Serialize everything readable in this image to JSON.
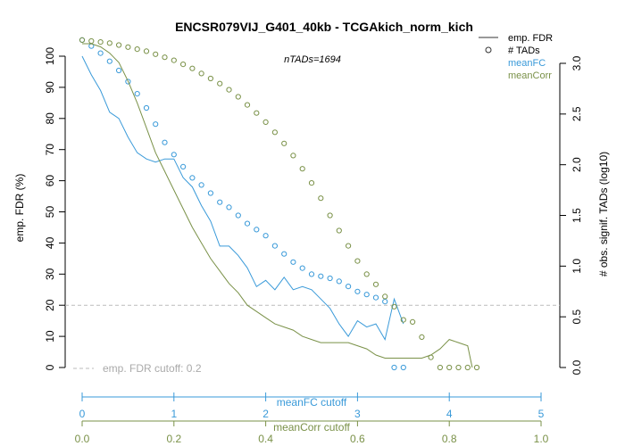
{
  "chart_data": {
    "type": "line",
    "title": "ENCSR079VIJ_G401_40kb - TCGAkich_norm_kich",
    "subtitle": "nTADs=1694",
    "ylabel_left": "emp. FDR (%)",
    "ylabel_right": "# obs. signif. TADs (log10)",
    "xlabel_fc": "meanFC cutoff",
    "xlabel_corr": "meanCorr cutoff",
    "left_ticks": [
      "0",
      "10",
      "20",
      "30",
      "40",
      "50",
      "60",
      "70",
      "80",
      "90",
      "100"
    ],
    "right_ticks": [
      "0.0",
      "0.5",
      "1.0",
      "1.5",
      "2.0",
      "2.5",
      "3.0"
    ],
    "fc_ticks": [
      "0",
      "1",
      "2",
      "3",
      "4",
      "5"
    ],
    "corr_ticks": [
      "0.0",
      "0.2",
      "0.4",
      "0.6",
      "0.8",
      "1.0"
    ],
    "ylim_fdr": [
      0,
      100
    ],
    "ylim_log10": [
      0,
      3
    ],
    "xlim_fc": [
      0,
      5
    ],
    "xlim_corr": [
      0,
      1
    ],
    "fdr_cutoff": 20,
    "cutoff_label": "emp. FDR cutoff: 0.2",
    "colors": {
      "fc": "#3a9ad9",
      "corr": "#7a9148",
      "cutoff": "#bbbbbb",
      "axis": "#000000"
    },
    "legend": [
      {
        "label": "emp. FDR",
        "kind": "line",
        "color": "#333333"
      },
      {
        "label": "# TADs",
        "kind": "circle",
        "color": "#333333"
      },
      {
        "label": "meanFC",
        "kind": "text",
        "color": "#3a9ad9"
      },
      {
        "label": "meanCorr",
        "kind": "text",
        "color": "#7a9148"
      }
    ],
    "series": [
      {
        "name": "meanFC",
        "fdr_x": [
          0,
          0.1,
          0.2,
          0.3,
          0.4,
          0.5,
          0.6,
          0.7,
          0.8,
          0.9,
          1.0,
          1.1,
          1.2,
          1.3,
          1.4,
          1.5,
          1.6,
          1.7,
          1.8,
          1.9,
          2.0,
          2.1,
          2.2,
          2.3,
          2.4,
          2.5,
          2.6,
          2.7,
          2.8,
          2.9,
          3.0,
          3.1,
          3.2,
          3.3,
          3.4,
          3.5
        ],
        "fdr_y": [
          100,
          94,
          89,
          82,
          80,
          74,
          69,
          67,
          66,
          67,
          67,
          61,
          58,
          52,
          47,
          39,
          39,
          36,
          32,
          26,
          28,
          25,
          29,
          25,
          26,
          25,
          22,
          19,
          14,
          10,
          15,
          13,
          14,
          9,
          22,
          14
        ],
        "tads_x": [
          0,
          0.1,
          0.2,
          0.3,
          0.4,
          0.5,
          0.6,
          0.7,
          0.8,
          0.9,
          1.0,
          1.1,
          1.2,
          1.3,
          1.4,
          1.5,
          1.6,
          1.7,
          1.8,
          1.9,
          2.0,
          2.1,
          2.2,
          2.3,
          2.4,
          2.5,
          2.6,
          2.7,
          2.8,
          2.9,
          3.0,
          3.1,
          3.2,
          3.3,
          3.4,
          3.5
        ],
        "tads_y": [
          3.23,
          3.17,
          3.1,
          3.02,
          2.93,
          2.82,
          2.7,
          2.56,
          2.4,
          2.22,
          2.1,
          1.98,
          1.87,
          1.8,
          1.72,
          1.63,
          1.58,
          1.5,
          1.42,
          1.36,
          1.3,
          1.2,
          1.12,
          1.04,
          0.98,
          0.92,
          0.9,
          0.88,
          0.85,
          0.8,
          0.75,
          0.72,
          0.69,
          0.65,
          0.0,
          0.0
        ]
      },
      {
        "name": "meanCorr",
        "fdr_x": [
          0,
          0.02,
          0.04,
          0.06,
          0.08,
          0.1,
          0.12,
          0.14,
          0.16,
          0.18,
          0.2,
          0.22,
          0.24,
          0.26,
          0.28,
          0.3,
          0.32,
          0.34,
          0.36,
          0.38,
          0.4,
          0.42,
          0.44,
          0.46,
          0.48,
          0.5,
          0.52,
          0.54,
          0.56,
          0.58,
          0.6,
          0.62,
          0.64,
          0.66,
          0.68,
          0.7,
          0.72,
          0.74,
          0.76,
          0.78,
          0.8,
          0.82,
          0.84,
          0.85
        ],
        "fdr_y": [
          104,
          104,
          103,
          101,
          98,
          92,
          85,
          77,
          69,
          63,
          57,
          51,
          45,
          40,
          35,
          31,
          27,
          24,
          20,
          18,
          16,
          14,
          13,
          12,
          10,
          9,
          8,
          8,
          8,
          8,
          7,
          6,
          4,
          3,
          3,
          3,
          3,
          3,
          4,
          6,
          9,
          8,
          7,
          0
        ],
        "tads_x": [
          0,
          0.02,
          0.04,
          0.06,
          0.08,
          0.1,
          0.12,
          0.14,
          0.16,
          0.18,
          0.2,
          0.22,
          0.24,
          0.26,
          0.28,
          0.3,
          0.32,
          0.34,
          0.36,
          0.38,
          0.4,
          0.42,
          0.44,
          0.46,
          0.48,
          0.5,
          0.52,
          0.54,
          0.56,
          0.58,
          0.6,
          0.62,
          0.64,
          0.66,
          0.68,
          0.7,
          0.72,
          0.74,
          0.76,
          0.78,
          0.8,
          0.82,
          0.84,
          0.86
        ],
        "tads_y": [
          3.23,
          3.22,
          3.21,
          3.2,
          3.18,
          3.16,
          3.14,
          3.12,
          3.09,
          3.06,
          3.03,
          2.99,
          2.95,
          2.9,
          2.85,
          2.8,
          2.74,
          2.67,
          2.59,
          2.51,
          2.42,
          2.32,
          2.21,
          2.09,
          1.96,
          1.82,
          1.67,
          1.5,
          1.35,
          1.2,
          1.05,
          0.92,
          0.82,
          0.7,
          0.6,
          0.47,
          0.45,
          0.3,
          0.1,
          0.0,
          0.0,
          0.0,
          0.0,
          0.0
        ]
      }
    ]
  }
}
